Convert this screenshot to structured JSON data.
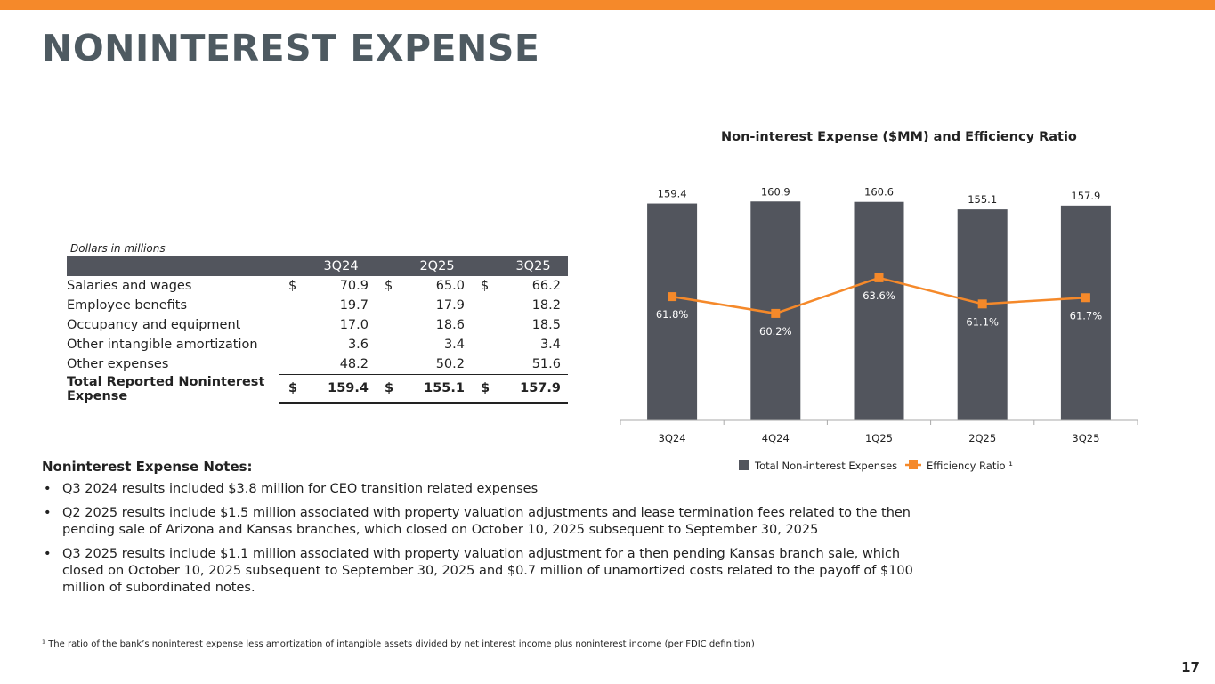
{
  "title": "NONINTEREST EXPENSE",
  "colors": {
    "accent": "#F5892A",
    "bar": "#52555D",
    "title": "#4E5A61"
  },
  "table": {
    "unit_note": "Dollars in millions",
    "columns": [
      "3Q24",
      "2Q25",
      "3Q25"
    ],
    "rows": [
      {
        "label": "Salaries and wages",
        "cur": "$",
        "values": [
          "70.9",
          "65.0",
          "66.2"
        ]
      },
      {
        "label": "Employee benefits",
        "cur": "",
        "values": [
          "19.7",
          "17.9",
          "18.2"
        ]
      },
      {
        "label": "Occupancy and equipment",
        "cur": "",
        "values": [
          "17.0",
          "18.6",
          "18.5"
        ]
      },
      {
        "label": "Other intangible amortization",
        "cur": "",
        "values": [
          "3.6",
          "3.4",
          "3.4"
        ]
      },
      {
        "label": "Other expenses",
        "cur": "",
        "values": [
          "48.2",
          "50.2",
          "51.6"
        ]
      }
    ],
    "total": {
      "label": "Total Reported Noninterest Expense",
      "cur": "$",
      "values": [
        "159.4",
        "155.1",
        "157.9"
      ]
    }
  },
  "notes": {
    "title": "Noninterest Expense Notes:",
    "items": [
      "Q3 2024 results included $3.8 million for CEO transition related expenses",
      "Q2 2025 results include $1.5 million associated with property valuation adjustments and lease termination fees related to the then pending sale of Arizona and Kansas branches, which closed on October 10, 2025 subsequent to September 30, 2025",
      "Q3 2025 results include $1.1 million associated with property valuation adjustment for a then pending Kansas branch sale, which closed on October 10, 2025 subsequent to September 30, 2025 and $0.7 million of unamortized costs related to the payoff of $100 million of subordinated notes."
    ]
  },
  "footnote": "¹ The ratio of the bank’s noninterest expense less amortization of intangible assets divided by net interest income plus noninterest income (per FDIC definition)",
  "page_number": "17",
  "chart_data": {
    "type": "bar+line",
    "title": "Non-interest Expense ($MM) and Efficiency Ratio",
    "categories": [
      "3Q24",
      "4Q24",
      "1Q25",
      "2Q25",
      "3Q25"
    ],
    "series": [
      {
        "name": "Total Non-interest Expenses",
        "type": "bar",
        "values": [
          159.4,
          160.9,
          160.6,
          155.1,
          157.9
        ],
        "labels": [
          "159.4",
          "160.9",
          "160.6",
          "155.1",
          "157.9"
        ],
        "color": "#52555D"
      },
      {
        "name": "Efficiency Ratio ¹",
        "type": "line",
        "values": [
          61.8,
          60.2,
          63.6,
          61.1,
          61.7
        ],
        "labels": [
          "61.8%",
          "60.2%",
          "63.6%",
          "61.1%",
          "61.7%"
        ],
        "color": "#F5892A"
      }
    ],
    "ylim": [
      0,
      165
    ],
    "y2lim": [
      50,
      72
    ],
    "grid": false,
    "legend": "bottom"
  }
}
